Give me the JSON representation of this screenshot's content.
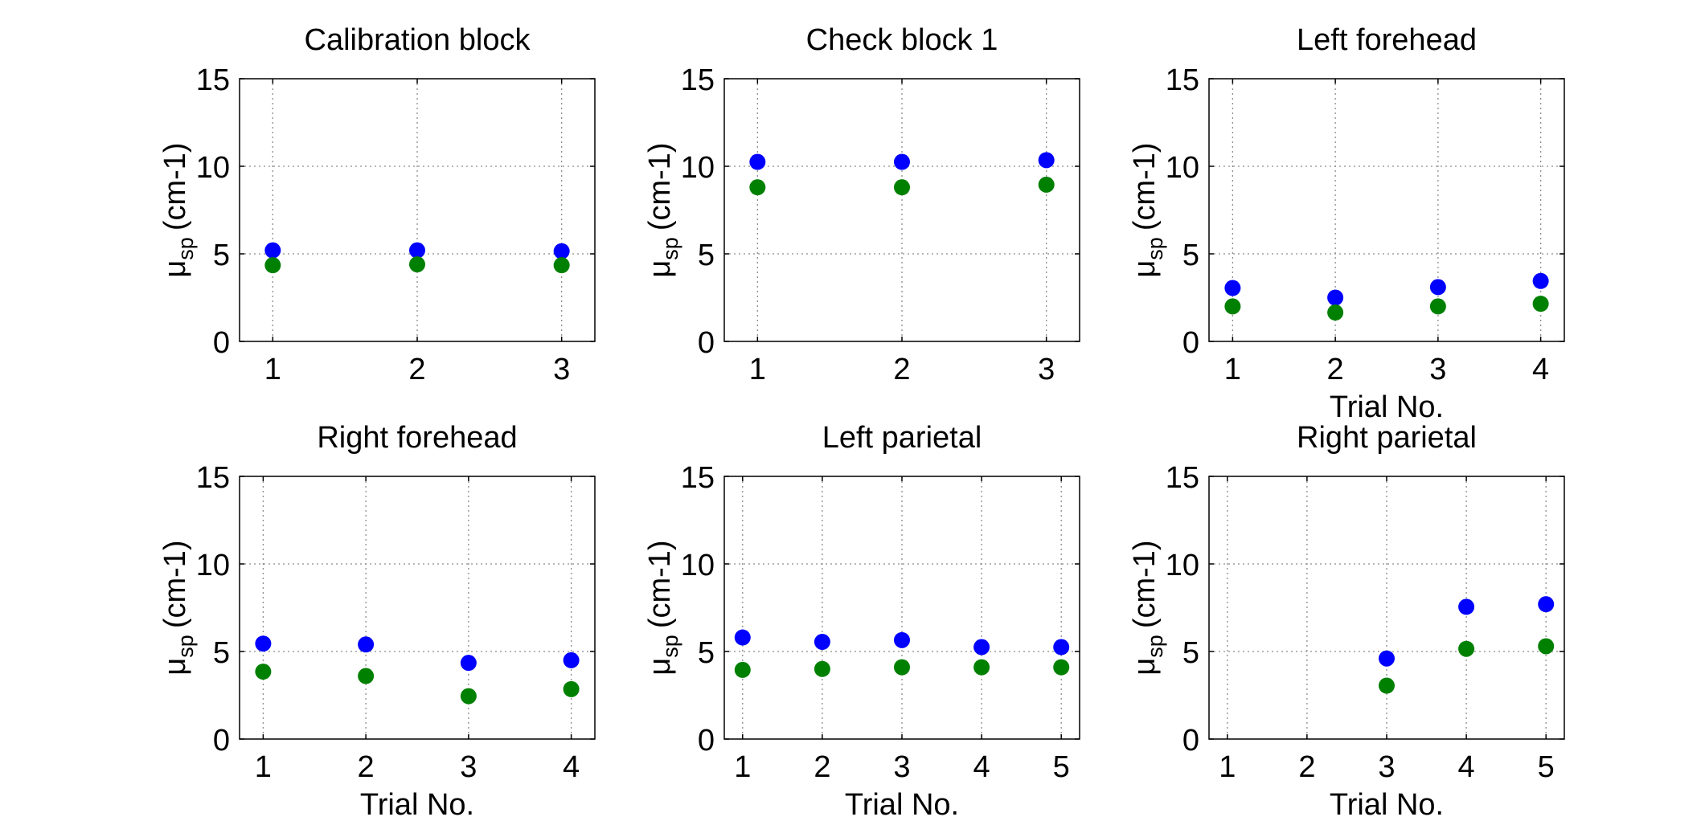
{
  "chart_data": [
    {
      "type": "scatter",
      "title": "Calibration block",
      "xlabel": "",
      "ylabel": "μsp (cm-1)",
      "ylabel_symbol": "μ",
      "ylabel_sub": "sp",
      "ylabel_unit": "(cm-1)",
      "xlim": [
        0.77,
        3.23
      ],
      "ylim": [
        0,
        15
      ],
      "xticks": [
        1,
        2,
        3
      ],
      "yticks": [
        0,
        5,
        10,
        15
      ],
      "grid": true,
      "series": [
        {
          "color": "#0000ff",
          "x": [
            1,
            2,
            3
          ],
          "y": [
            5.2,
            5.2,
            5.15
          ]
        },
        {
          "color": "#008000",
          "x": [
            1,
            2,
            3
          ],
          "y": [
            4.35,
            4.4,
            4.35
          ]
        }
      ]
    },
    {
      "type": "scatter",
      "title": "Check block 1",
      "xlabel": "",
      "ylabel": "μsp (cm-1)",
      "ylabel_symbol": "μ",
      "ylabel_sub": "sp",
      "ylabel_unit": "(cm-1)",
      "xlim": [
        0.77,
        3.23
      ],
      "ylim": [
        0,
        15
      ],
      "xticks": [
        1,
        2,
        3
      ],
      "yticks": [
        0,
        5,
        10,
        15
      ],
      "grid": true,
      "series": [
        {
          "color": "#0000ff",
          "x": [
            1,
            2,
            3
          ],
          "y": [
            10.25,
            10.25,
            10.35
          ]
        },
        {
          "color": "#008000",
          "x": [
            1,
            2,
            3
          ],
          "y": [
            8.8,
            8.8,
            8.95
          ]
        }
      ]
    },
    {
      "type": "scatter",
      "title": "Left forehead",
      "xlabel": "Trial No.",
      "ylabel": "μsp (cm-1)",
      "ylabel_symbol": "μ",
      "ylabel_sub": "sp",
      "ylabel_unit": "(cm-1)",
      "xlim": [
        0.77,
        4.23
      ],
      "ylim": [
        0,
        15
      ],
      "xticks": [
        1,
        2,
        3,
        4
      ],
      "yticks": [
        0,
        5,
        10,
        15
      ],
      "grid": true,
      "series": [
        {
          "color": "#0000ff",
          "x": [
            1,
            2,
            3,
            4
          ],
          "y": [
            3.05,
            2.5,
            3.1,
            3.45
          ]
        },
        {
          "color": "#008000",
          "x": [
            1,
            2,
            3,
            4
          ],
          "y": [
            2.0,
            1.65,
            2.0,
            2.15
          ]
        }
      ]
    },
    {
      "type": "scatter",
      "title": "Right forehead",
      "xlabel": "Trial No.",
      "ylabel": "μsp (cm-1)",
      "ylabel_symbol": "μ",
      "ylabel_sub": "sp",
      "ylabel_unit": "(cm-1)",
      "xlim": [
        0.77,
        4.23
      ],
      "ylim": [
        0,
        15
      ],
      "xticks": [
        1,
        2,
        3,
        4
      ],
      "yticks": [
        0,
        5,
        10,
        15
      ],
      "grid": true,
      "series": [
        {
          "color": "#0000ff",
          "x": [
            1,
            2,
            3,
            4
          ],
          "y": [
            5.45,
            5.4,
            4.35,
            4.5
          ]
        },
        {
          "color": "#008000",
          "x": [
            1,
            2,
            3,
            4
          ],
          "y": [
            3.85,
            3.6,
            2.45,
            2.85
          ]
        }
      ]
    },
    {
      "type": "scatter",
      "title": "Left parietal",
      "xlabel": "Trial No.",
      "ylabel": "μsp (cm-1)",
      "ylabel_symbol": "μ",
      "ylabel_sub": "sp",
      "ylabel_unit": "(cm-1)",
      "xlim": [
        0.77,
        5.23
      ],
      "ylim": [
        0,
        15
      ],
      "xticks": [
        1,
        2,
        3,
        4,
        5
      ],
      "yticks": [
        0,
        5,
        10,
        15
      ],
      "grid": true,
      "series": [
        {
          "color": "#0000ff",
          "x": [
            1,
            2,
            3,
            4,
            5
          ],
          "y": [
            5.8,
            5.55,
            5.65,
            5.25,
            5.25
          ]
        },
        {
          "color": "#008000",
          "x": [
            1,
            2,
            3,
            4,
            5
          ],
          "y": [
            3.95,
            4.0,
            4.1,
            4.1,
            4.1
          ]
        }
      ]
    },
    {
      "type": "scatter",
      "title": "Right parietal",
      "xlabel": "Trial No.",
      "ylabel": "μsp (cm-1)",
      "ylabel_symbol": "μ",
      "ylabel_sub": "sp",
      "ylabel_unit": "(cm-1)",
      "xlim": [
        0.77,
        5.23
      ],
      "ylim": [
        0,
        15
      ],
      "xticks": [
        1,
        2,
        3,
        4,
        5
      ],
      "yticks": [
        0,
        5,
        10,
        15
      ],
      "grid": true,
      "series": [
        {
          "color": "#0000ff",
          "x": [
            3,
            4,
            5
          ],
          "y": [
            4.6,
            7.55,
            7.7
          ]
        },
        {
          "color": "#008000",
          "x": [
            3,
            4,
            5
          ],
          "y": [
            3.05,
            5.15,
            5.3
          ]
        }
      ]
    }
  ]
}
